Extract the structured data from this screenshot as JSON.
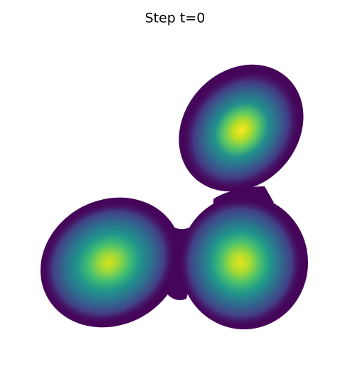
{
  "chart_data": {
    "type": "contour",
    "title": "Step t=0"
  }
}
